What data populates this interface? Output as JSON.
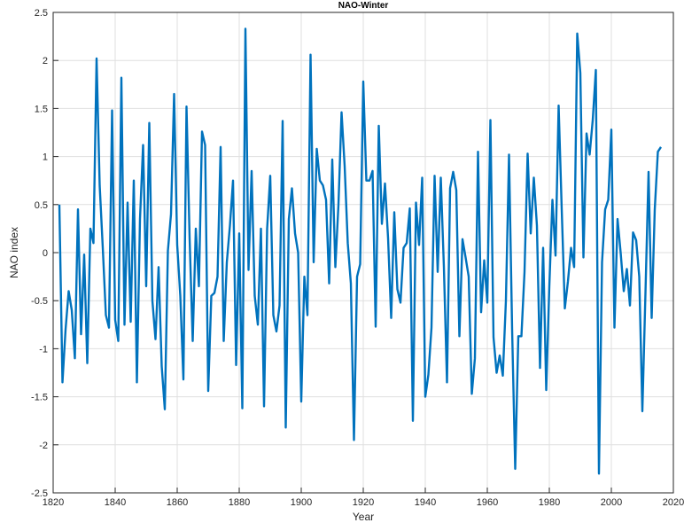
{
  "chart_data": {
    "type": "line",
    "title": "NAO-Winter",
    "xlabel": "Year",
    "ylabel": "NAO index",
    "xlim": [
      1820,
      2020
    ],
    "ylim": [
      -2.5,
      2.5
    ],
    "x_ticks": [
      1820,
      1840,
      1860,
      1880,
      1900,
      1920,
      1940,
      1960,
      1980,
      2000,
      2020
    ],
    "y_ticks": [
      -2.5,
      -2,
      -1.5,
      -1,
      -0.5,
      0,
      0.5,
      1,
      1.5,
      2,
      2.5
    ],
    "x_tick_labels": [
      "1820",
      "1840",
      "1860",
      "1880",
      "1900",
      "1920",
      "1940",
      "1960",
      "1980",
      "2000",
      "2020"
    ],
    "y_tick_labels": [
      "-2.5",
      "-2",
      "-1.5",
      "-1",
      "-0.5",
      "0",
      "0.5",
      "1",
      "1.5",
      "2",
      "2.5"
    ],
    "grid": true,
    "series": [
      {
        "color": "#0072bd",
        "x": [
          1822,
          1823,
          1824,
          1825,
          1826,
          1827,
          1828,
          1829,
          1830,
          1831,
          1832,
          1833,
          1834,
          1835,
          1836,
          1837,
          1838,
          1839,
          1840,
          1841,
          1842,
          1843,
          1844,
          1845,
          1846,
          1847,
          1848,
          1849,
          1850,
          1851,
          1852,
          1853,
          1854,
          1855,
          1856,
          1857,
          1858,
          1859,
          1860,
          1861,
          1862,
          1863,
          1864,
          1865,
          1866,
          1867,
          1868,
          1869,
          1870,
          1871,
          1872,
          1873,
          1874,
          1875,
          1876,
          1877,
          1878,
          1879,
          1880,
          1881,
          1882,
          1883,
          1884,
          1885,
          1886,
          1887,
          1888,
          1889,
          1890,
          1891,
          1892,
          1893,
          1894,
          1895,
          1896,
          1897,
          1898,
          1899,
          1900,
          1901,
          1902,
          1903,
          1904,
          1905,
          1906,
          1907,
          1908,
          1909,
          1910,
          1911,
          1912,
          1913,
          1914,
          1915,
          1916,
          1917,
          1918,
          1919,
          1920,
          1921,
          1922,
          1923,
          1924,
          1925,
          1926,
          1927,
          1928,
          1929,
          1930,
          1931,
          1932,
          1933,
          1934,
          1935,
          1936,
          1937,
          1938,
          1939,
          1940,
          1941,
          1942,
          1943,
          1944,
          1945,
          1946,
          1947,
          1948,
          1949,
          1950,
          1951,
          1952,
          1953,
          1954,
          1955,
          1956,
          1957,
          1958,
          1959,
          1960,
          1961,
          1962,
          1963,
          1964,
          1965,
          1966,
          1967,
          1968,
          1969,
          1970,
          1971,
          1972,
          1973,
          1974,
          1975,
          1976,
          1977,
          1978,
          1979,
          1980,
          1981,
          1982,
          1983,
          1984,
          1985,
          1986,
          1987,
          1988,
          1989,
          1990,
          1991,
          1992,
          1993,
          1994,
          1995,
          1996,
          1997,
          1998,
          1999,
          2000,
          2001,
          2002,
          2003,
          2004,
          2005,
          2006,
          2007,
          2008,
          2009,
          2010,
          2011,
          2012,
          2013,
          2014,
          2015,
          2016
        ],
        "y": [
          0.5,
          -1.35,
          -0.8,
          -0.4,
          -0.6,
          -1.1,
          0.45,
          -0.85,
          -0.02,
          -1.15,
          0.25,
          0.1,
          2.02,
          0.7,
          0.05,
          -0.65,
          -0.78,
          1.48,
          -0.7,
          -0.92,
          1.82,
          -0.75,
          0.52,
          -0.72,
          0.75,
          -1.35,
          0.35,
          1.12,
          -0.35,
          1.35,
          -0.5,
          -0.9,
          -0.15,
          -1.18,
          -1.63,
          0.02,
          0.4,
          1.65,
          0.08,
          -0.45,
          -1.32,
          1.52,
          0.15,
          -0.92,
          0.25,
          -0.35,
          1.26,
          1.12,
          -1.44,
          -0.45,
          -0.42,
          -0.25,
          1.1,
          -0.92,
          -0.1,
          0.28,
          0.75,
          -1.17,
          0.2,
          -1.62,
          2.33,
          -0.18,
          0.85,
          -0.45,
          -0.75,
          0.25,
          -1.6,
          0.25,
          0.8,
          -0.65,
          -0.82,
          -0.55,
          1.37,
          -1.82,
          0.35,
          0.67,
          0.2,
          0.0,
          -1.55,
          -0.25,
          -0.65,
          2.06,
          -0.1,
          1.08,
          0.75,
          0.7,
          0.55,
          -0.32,
          0.97,
          -0.15,
          0.5,
          1.46,
          0.9,
          0.1,
          -0.32,
          -1.95,
          -0.25,
          -0.12,
          1.78,
          0.75,
          0.75,
          0.85,
          -0.77,
          1.32,
          0.3,
          0.72,
          0.15,
          -0.68,
          0.42,
          -0.38,
          -0.52,
          0.05,
          0.1,
          0.46,
          -1.75,
          0.52,
          0.08,
          0.78,
          -1.5,
          -1.27,
          -0.78,
          0.8,
          -0.2,
          0.78,
          -0.15,
          -1.35,
          0.67,
          0.84,
          0.65,
          -0.87,
          0.14,
          -0.05,
          -0.25,
          -1.47,
          -1.1,
          1.05,
          -0.62,
          -0.08,
          -0.52,
          1.38,
          -0.88,
          -1.25,
          -1.07,
          -1.28,
          -0.5,
          1.02,
          -0.8,
          -2.25,
          -0.87,
          -0.87,
          -0.2,
          1.03,
          0.2,
          0.78,
          0.28,
          -1.2,
          0.05,
          -1.43,
          -0.35,
          0.55,
          -0.03,
          1.53,
          0.45,
          -0.58,
          -0.3,
          0.05,
          -0.15,
          2.28,
          1.87,
          -0.05,
          1.24,
          1.02,
          1.38,
          1.9,
          -2.3,
          -0.1,
          0.45,
          0.55,
          1.28,
          -0.78,
          0.35,
          0.0,
          -0.4,
          -0.17,
          -0.55,
          0.21,
          0.13,
          -0.25,
          -1.65,
          -0.42,
          0.84,
          -0.68,
          0.45,
          1.05,
          1.1
        ]
      }
    ]
  }
}
